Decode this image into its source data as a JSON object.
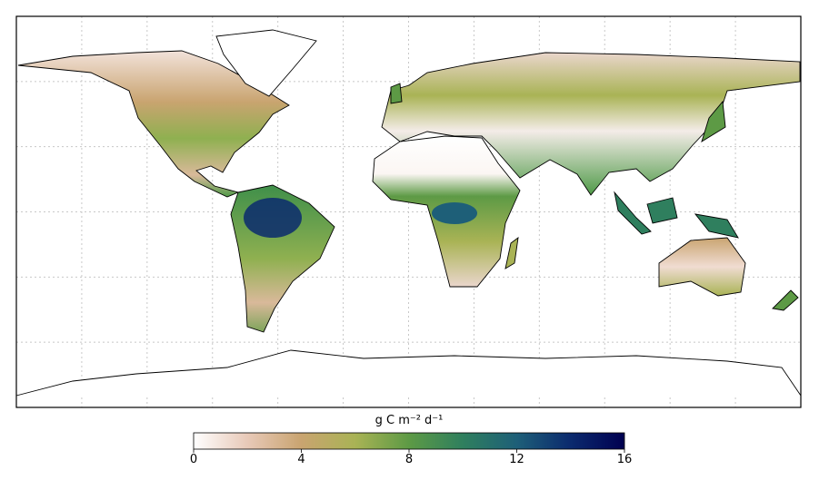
{
  "colorbar": {
    "label": "g C m⁻² d⁻¹",
    "lim": [
      0,
      16
    ],
    "ticks": [
      0,
      4,
      8,
      12,
      16
    ],
    "colormap": [
      "#ffffff",
      "#e8c9b8",
      "#c9a470",
      "#a9b355",
      "#5d9a45",
      "#2f7f5e",
      "#1e5f78",
      "#0b2a6e",
      "#000050"
    ]
  }
}
